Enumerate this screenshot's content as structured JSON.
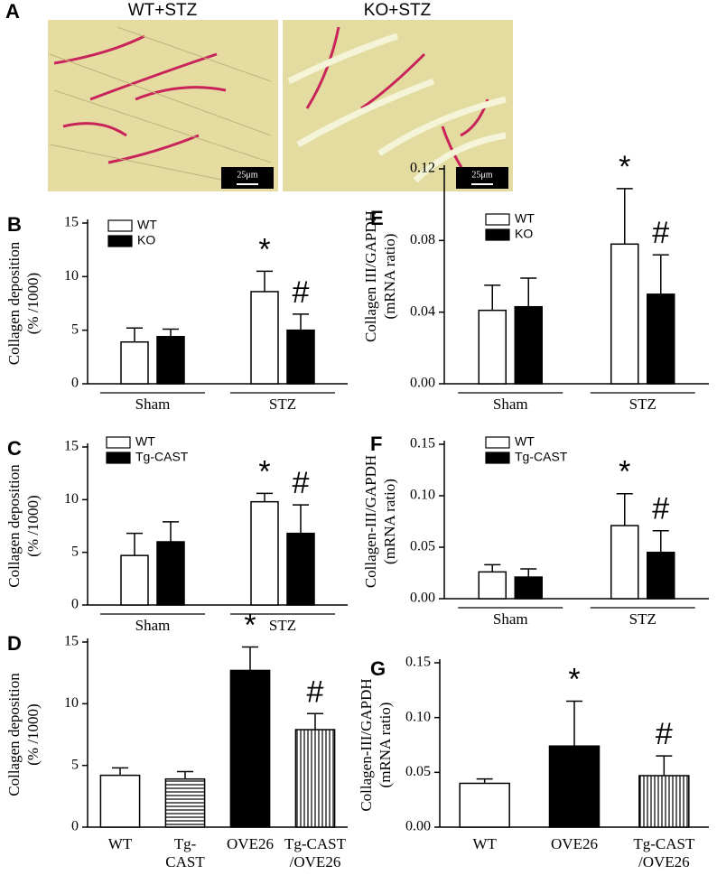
{
  "panel_a": {
    "label": "A",
    "images": [
      {
        "title": "WT+STZ",
        "scale": "25μm"
      },
      {
        "title": "KO+STZ",
        "scale": "25μm"
      }
    ]
  },
  "chart_data": [
    {
      "type": "bar",
      "panel": "B",
      "ylabel": [
        "Collagen deposition",
        "(% /1000)"
      ],
      "ylim": [
        0,
        15
      ],
      "yticks": [
        0,
        5,
        10,
        15
      ],
      "legend": "upper left",
      "categories": [
        "Sham",
        "STZ"
      ],
      "series": [
        {
          "name": "WT",
          "color": "#ffffff",
          "values": [
            3.9,
            8.6
          ],
          "errors": [
            1.3,
            1.9
          ],
          "markers": [
            null,
            "*"
          ]
        },
        {
          "name": "KO",
          "color": "#000000",
          "values": [
            4.4,
            5.0
          ],
          "errors": [
            0.7,
            1.5
          ],
          "markers": [
            null,
            "#"
          ]
        }
      ]
    },
    {
      "type": "bar",
      "panel": "E",
      "ylabel": [
        "Collagen III/GAPDH",
        "(mRNA ratio)"
      ],
      "ylim": [
        0,
        0.12
      ],
      "legend": "upper left",
      "yticks": [
        {
          "value": 0,
          "label": "0.00"
        },
        {
          "value": 0.04,
          "label": "0.04"
        },
        {
          "value": 0.08,
          "label": "0.08"
        },
        {
          "value": 0.12,
          "label": "0.12"
        }
      ],
      "categories": [
        "Sham",
        "STZ"
      ],
      "series": [
        {
          "name": "WT",
          "color": "#ffffff",
          "values": [
            0.041,
            0.078
          ],
          "errors": [
            0.014,
            0.031
          ],
          "markers": [
            null,
            "*"
          ]
        },
        {
          "name": "KO",
          "color": "#000000",
          "values": [
            0.043,
            0.05
          ],
          "errors": [
            0.016,
            0.022
          ],
          "markers": [
            null,
            "#"
          ]
        }
      ]
    },
    {
      "type": "bar",
      "panel": "C",
      "ylabel": [
        "Collagen deposition",
        "(% /1000)"
      ],
      "ylim": [
        0,
        15
      ],
      "yticks": [
        0,
        5,
        10,
        15
      ],
      "legend": "upper left",
      "categories": [
        "Sham",
        "STZ"
      ],
      "series": [
        {
          "name": "WT",
          "color": "#ffffff",
          "values": [
            4.7,
            9.8
          ],
          "errors": [
            2.1,
            0.8
          ],
          "markers": [
            null,
            "*"
          ]
        },
        {
          "name": "Tg-CAST",
          "color": "#000000",
          "values": [
            6.0,
            6.8
          ],
          "errors": [
            1.9,
            2.7
          ],
          "markers": [
            null,
            "#"
          ]
        }
      ]
    },
    {
      "type": "bar",
      "panel": "F",
      "ylabel": [
        "Collagen-III/GAPDH",
        "(mRNA ratio)"
      ],
      "ylim": [
        0,
        0.15
      ],
      "legend": "upper left",
      "yticks": [
        {
          "value": 0,
          "label": "0.00"
        },
        {
          "value": 0.05,
          "label": "0.05"
        },
        {
          "value": 0.1,
          "label": "0.10"
        },
        {
          "value": 0.15,
          "label": "0.15"
        }
      ],
      "categories": [
        "Sham",
        "STZ"
      ],
      "series": [
        {
          "name": "WT",
          "color": "#ffffff",
          "values": [
            0.026,
            0.071
          ],
          "errors": [
            0.007,
            0.031
          ],
          "markers": [
            null,
            "*"
          ]
        },
        {
          "name": "Tg-CAST",
          "color": "#000000",
          "values": [
            0.021,
            0.045
          ],
          "errors": [
            0.008,
            0.021
          ],
          "markers": [
            null,
            "#"
          ]
        }
      ]
    },
    {
      "type": "bar",
      "panel": "D",
      "ylabel": [
        "Collagen deposition",
        "(% /1000)"
      ],
      "ylim": [
        0,
        15
      ],
      "yticks": [
        0,
        5,
        10,
        15
      ],
      "categories": [
        [
          "WT"
        ],
        [
          "Tg-",
          "CAST"
        ],
        [
          "OVE26"
        ],
        [
          "Tg-CAST",
          "/OVE26"
        ]
      ],
      "values": [
        4.2,
        3.9,
        12.7,
        7.9
      ],
      "errors": [
        0.6,
        0.6,
        1.9,
        1.3
      ],
      "markers": [
        null,
        null,
        "*",
        "#"
      ],
      "fills": [
        "white",
        "hstripe",
        "black",
        "vstripe"
      ]
    },
    {
      "type": "bar",
      "panel": "G",
      "ylabel": [
        "Collagen-III/GAPDH",
        "(mRNA ratio)"
      ],
      "ylim": [
        0,
        0.15
      ],
      "yticks": [
        {
          "value": 0,
          "label": "0.00"
        },
        {
          "value": 0.05,
          "label": "0.05"
        },
        {
          "value": 0.1,
          "label": "0.10"
        },
        {
          "value": 0.15,
          "label": "0.15"
        }
      ],
      "categories": [
        [
          "WT"
        ],
        [
          "OVE26"
        ],
        [
          "Tg-CAST",
          "/OVE26"
        ]
      ],
      "values": [
        0.04,
        0.074,
        0.047
      ],
      "errors": [
        0.004,
        0.041,
        0.018
      ],
      "markers": [
        null,
        "*",
        "#"
      ],
      "fills": [
        "white",
        "black",
        "vstripe"
      ]
    }
  ]
}
